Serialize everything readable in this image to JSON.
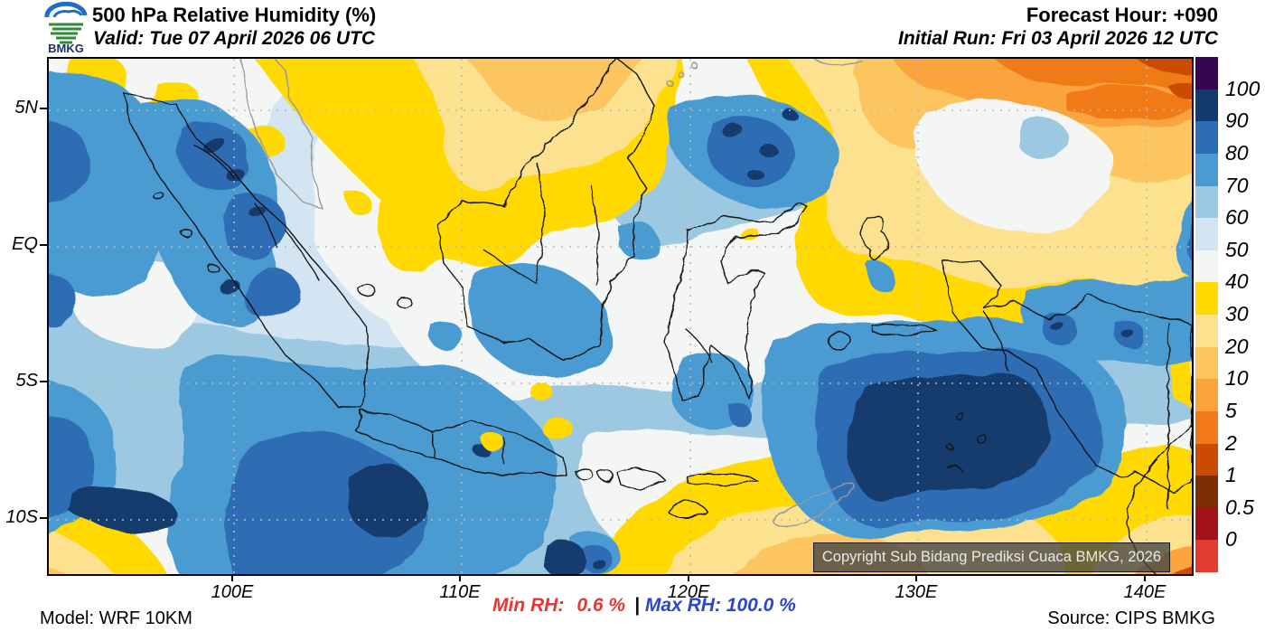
{
  "header": {
    "logo_text": "BMKG",
    "title": "500 hPa Relative Humidity (%)",
    "valid": "Valid: Tue 07 April 2026 06 UTC",
    "forecast_hour": "Forecast Hour: +090",
    "initial_run": "Initial Run: Fri 03 April 2026 12 UTC"
  },
  "map": {
    "lat_labels": [
      "5N",
      "EQ",
      "5S",
      "10S"
    ],
    "lon_labels": [
      "100E",
      "110E",
      "120E",
      "130E",
      "140E"
    ],
    "watermark": "Copyright Sub Bidang Prediksi Cuaca BMKG, 2026"
  },
  "colorbar": {
    "tick_labels": [
      "100",
      "90",
      "80",
      "70",
      "60",
      "50",
      "40",
      "30",
      "20",
      "10",
      "5",
      "2",
      "1",
      "0.5",
      "0"
    ],
    "colors_top_to_bottom": [
      "#36064f",
      "#123a6d",
      "#2e6db4",
      "#4a9bd1",
      "#9cc8e2",
      "#d3e4f3",
      "#f3f6f4",
      "#ffd900",
      "#fce28e",
      "#fdc55e",
      "#fba33d",
      "#ef7a17",
      "#cb4b05",
      "#7c2d06",
      "#a31218",
      "#e23c2f"
    ]
  },
  "footer": {
    "model": "Model: WRF 10KM",
    "min_label": "Min RH:",
    "min_value": "0.6 %",
    "separator": "|",
    "max_label": "Max RH:",
    "max_value": "100.0 %",
    "source": "Source: CIPS BMKG",
    "min_color": "#ee3431",
    "max_color": "#2b44d4"
  }
}
